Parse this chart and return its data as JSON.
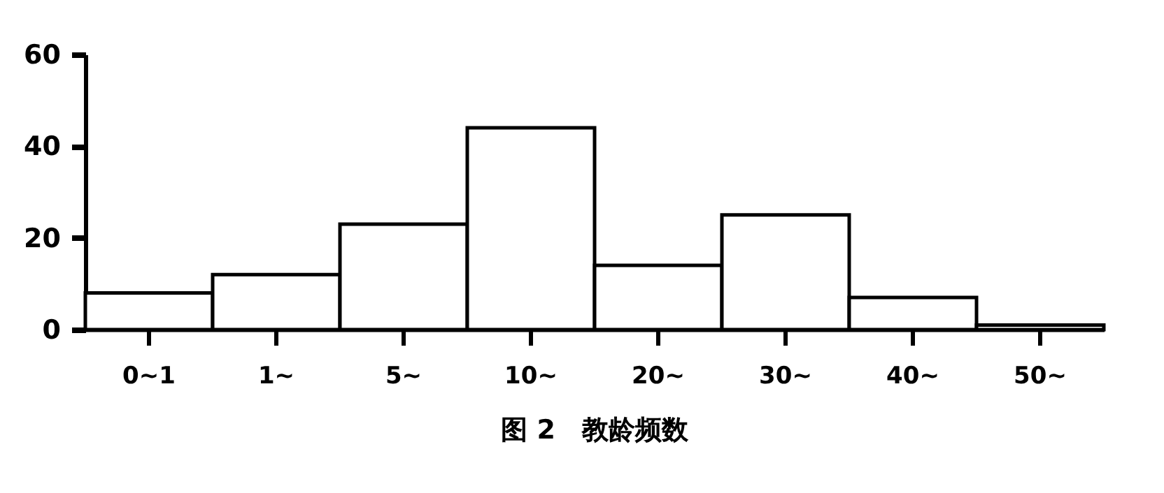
{
  "chart_data": {
    "type": "bar",
    "title": "图 2　教龄频数",
    "categories": [
      "0~1",
      "1~",
      "5~",
      "10~",
      "20~",
      "30~",
      "40~",
      "50~"
    ],
    "values": [
      8,
      12,
      23,
      44,
      14,
      25,
      7,
      1
    ],
    "color": "#ffffff",
    "ylim": [
      0,
      60
    ],
    "yticks": [
      0,
      20,
      40,
      60
    ],
    "grid": false
  }
}
